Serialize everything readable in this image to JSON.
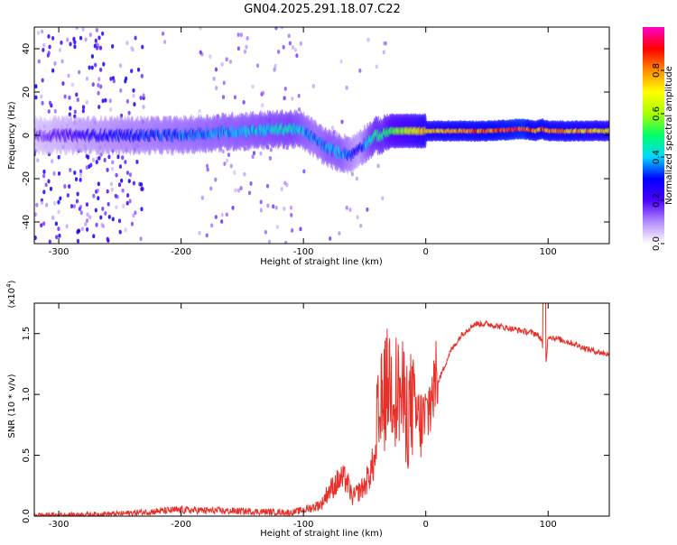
{
  "title": "GN04.2025.291.18.07.C22",
  "chart_data": [
    {
      "type": "heatmap",
      "xlabel": "Height of straight line (km)",
      "ylabel": "Frequency (Hz)",
      "xlim": [
        -320,
        150
      ],
      "ylim": [
        -50,
        50
      ],
      "x_ticks": [
        -300,
        -200,
        -100,
        0,
        100
      ],
      "y_ticks": [
        -40,
        -20,
        0,
        20,
        40
      ],
      "colorbar": {
        "label": "Normalized spectral amplitude",
        "range": [
          0,
          1
        ],
        "ticks": [
          "0.0",
          "0.2",
          "0.4",
          "0.6",
          "0.8"
        ],
        "colors": [
          "#ffffff",
          "#b38cff",
          "#4b00ff",
          "#0000ff",
          "#00d8ff",
          "#00ff6a",
          "#a8ff00",
          "#ffff00",
          "#ff8c00",
          "#ff0000",
          "#ff00c8"
        ]
      },
      "ridge": {
        "x": [
          -320,
          -300,
          -250,
          -200,
          -150,
          -110,
          -100,
          -90,
          -80,
          -70,
          -60,
          -55,
          -50,
          -45,
          -40,
          -35,
          -30,
          -20,
          -10,
          0,
          20,
          50,
          80,
          90,
          95,
          100,
          120,
          150
        ],
        "freq_hz": [
          0,
          0,
          0,
          0,
          2,
          3,
          2,
          -2,
          -6,
          -8,
          -9,
          -6,
          -4,
          -2,
          0,
          0,
          2,
          2,
          2,
          2,
          2,
          2,
          3,
          2,
          3,
          2,
          2,
          2
        ],
        "amplitude": [
          0.15,
          0.2,
          0.3,
          0.35,
          0.4,
          0.45,
          0.4,
          0.35,
          0.4,
          0.4,
          0.3,
          0.25,
          0.35,
          0.45,
          0.5,
          0.5,
          0.55,
          0.6,
          0.65,
          0.75,
          0.8,
          0.85,
          0.9,
          0.8,
          0.85,
          0.8,
          0.8,
          0.75
        ]
      }
    },
    {
      "type": "line",
      "xlabel": "Height of straight line (km)",
      "ylabel": "SNR (10 * v/v)",
      "y_multiplier": "(x10",
      "y_multiplier_exp": "4",
      "xlim": [
        -320,
        150
      ],
      "ylim": [
        0,
        1.75
      ],
      "x_ticks": [
        -300,
        -200,
        -100,
        0,
        100
      ],
      "y_ticks": [
        "0.0",
        "0.5",
        "1.0",
        "1.5"
      ],
      "series": [
        {
          "name": "SNR",
          "color": "#e8302a",
          "x": [
            -320,
            -300,
            -250,
            -220,
            -200,
            -150,
            -110,
            -100,
            -90,
            -85,
            -80,
            -75,
            -70,
            -65,
            -60,
            -50,
            -40,
            -35,
            -30,
            -25,
            -20,
            -15,
            -10,
            -5,
            0,
            5,
            10,
            20,
            30,
            40,
            50,
            60,
            70,
            80,
            90,
            95,
            97,
            100,
            110,
            120,
            130,
            140,
            150
          ],
          "y": [
            0.01,
            0.01,
            0.02,
            0.04,
            0.05,
            0.04,
            0.03,
            0.05,
            0.08,
            0.1,
            0.2,
            0.25,
            0.3,
            0.3,
            0.15,
            0.25,
            0.5,
            0.8,
            1.0,
            0.9,
            0.85,
            0.7,
            0.8,
            0.65,
            0.7,
            0.9,
            1.1,
            1.35,
            1.5,
            1.58,
            1.58,
            1.56,
            1.54,
            1.52,
            1.5,
            1.45,
            1.1,
            1.48,
            1.45,
            1.42,
            1.38,
            1.35,
            1.33
          ]
        }
      ]
    }
  ]
}
